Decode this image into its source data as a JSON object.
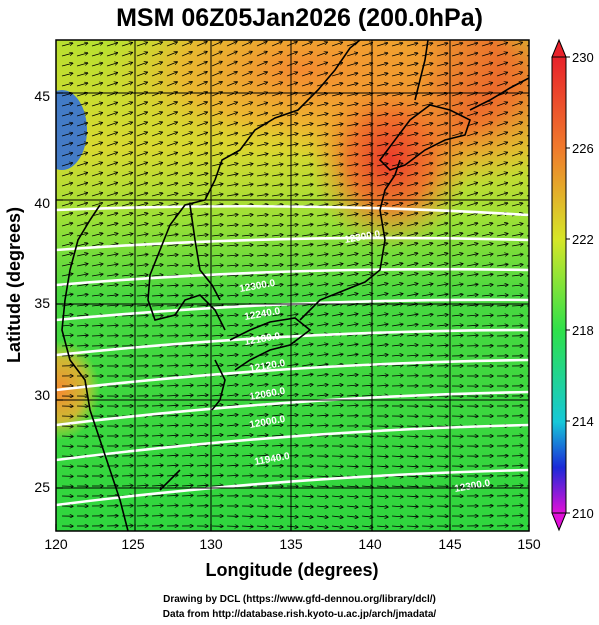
{
  "title": "MSM 06Z05Jan2026 (200.0hPa)",
  "axes": {
    "xlabel": "Longitude (degrees)",
    "ylabel": "Latitude  (degrees)",
    "xticks": [
      "120",
      "125",
      "130",
      "135",
      "140",
      "145",
      "150"
    ],
    "yticks": [
      "25",
      "30",
      "35",
      "40",
      "45"
    ],
    "xrange": [
      120,
      150
    ],
    "yrange": [
      22.5,
      47.5
    ]
  },
  "colorbar": {
    "ticks": [
      "230",
      "226",
      "222",
      "218",
      "214",
      "210"
    ],
    "range": [
      210,
      230
    ],
    "colors": {
      "top": "#e8222b",
      "orange": "#f07a2c",
      "yellow": "#d6e628",
      "green": "#2ee04a",
      "cyan": "#16c8d8",
      "blue": "#1b2ad8",
      "bottom": "#e010d8"
    }
  },
  "contour_labels": [
    "12300.0",
    "12300.0",
    "12240.0",
    "12180.0",
    "12120.0",
    "12060.0",
    "12000.0",
    "11940.0",
    "12300.0"
  ],
  "credits": {
    "line1": "Drawing by DCL (https://www.gfd-dennou.org/library/dcl/)",
    "line2": "Data from http://database.rish.kyoto-u.ac.jp/arch/jmadata/"
  }
}
